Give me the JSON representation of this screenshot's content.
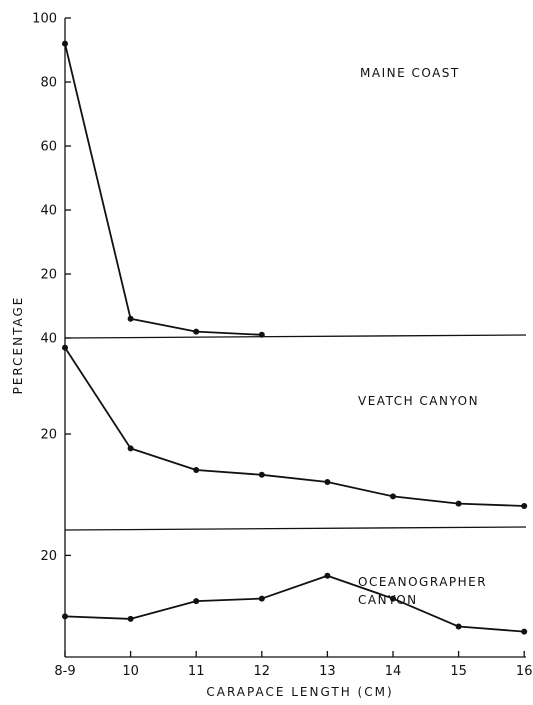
{
  "chart_data": {
    "type": "line",
    "xlabel": "CARAPACE LENGTH (CM)",
    "ylabel": "PERCENTAGE",
    "x_tick_labels": [
      "8-9",
      "10",
      "11",
      "12",
      "13",
      "14",
      "15",
      "16"
    ],
    "x_positions": [
      9,
      10,
      11,
      12,
      13,
      14,
      15,
      16
    ],
    "grid": false,
    "legend": "none",
    "panels": [
      {
        "label": "MAINE COAST",
        "ylim": [
          0,
          100
        ],
        "yticks": [
          20,
          40,
          60,
          80,
          100
        ],
        "x": [
          9,
          10,
          11,
          12
        ],
        "values": [
          92,
          6,
          2,
          1
        ]
      },
      {
        "label": "VEATCH CANYON",
        "ylim": [
          0,
          40
        ],
        "yticks": [
          20,
          40
        ],
        "x": [
          9,
          10,
          11,
          12,
          13,
          14,
          15,
          16
        ],
        "values": [
          38,
          17,
          12.5,
          11.5,
          10,
          7,
          5.5,
          5
        ]
      },
      {
        "label": "OCEANOGRAPHER CANYON",
        "ylim": [
          0,
          25
        ],
        "yticks": [
          20
        ],
        "x": [
          9,
          10,
          11,
          12,
          13,
          14,
          15,
          16
        ],
        "values": [
          8,
          7.5,
          11,
          11.5,
          16,
          11.5,
          6,
          5
        ]
      }
    ]
  }
}
